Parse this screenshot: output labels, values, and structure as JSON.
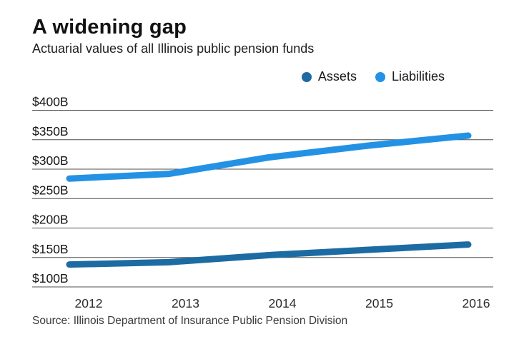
{
  "header": {
    "title": "A widening gap",
    "subtitle": "Actuarial values of all Illinois public pension funds"
  },
  "legend": {
    "items": [
      {
        "label": "Assets",
        "color": "#1d6ba3"
      },
      {
        "label": "Liabilities",
        "color": "#2492e4"
      }
    ]
  },
  "source": "Source: Illinois Department of Insurance Public Pension Division",
  "colors": {
    "assets": "#1d6ba3",
    "liabilities": "#2492e4",
    "gridline": "#4f4f4f",
    "title_text": "#121212"
  },
  "chart_data": {
    "type": "line",
    "title": "A widening gap",
    "subtitle": "Actuarial values of all Illinois public pension funds",
    "unit": "billions of dollars (USD)",
    "x": [
      "2012",
      "2013",
      "2014",
      "2015",
      "2016"
    ],
    "series": [
      {
        "name": "Assets",
        "color": "#1d6ba3",
        "values": [
          138,
          142,
          154,
          163,
          172
        ]
      },
      {
        "name": "Liabilities",
        "color": "#2492e4",
        "values": [
          284,
          292,
          320,
          340,
          357
        ]
      }
    ],
    "y_ticks": [
      {
        "value": 400,
        "label": "$400B"
      },
      {
        "value": 350,
        "label": "$350B"
      },
      {
        "value": 300,
        "label": "$300B"
      },
      {
        "value": 250,
        "label": "$250B"
      },
      {
        "value": 200,
        "label": "$200B"
      },
      {
        "value": 150,
        "label": "$150B"
      },
      {
        "value": 100,
        "label": "$100B"
      }
    ],
    "ylim": [
      100,
      400
    ],
    "grid": true,
    "legend_position": "top-right",
    "source": "Source: Illinois Department of Insurance Public Pension Division"
  }
}
